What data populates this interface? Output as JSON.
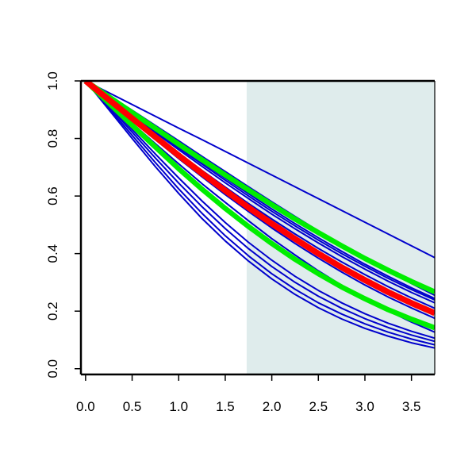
{
  "chart_data": {
    "type": "line",
    "title": "",
    "xlabel": "",
    "ylabel": "",
    "xlim": [
      -0.05,
      3.75
    ],
    "ylim": [
      -0.02,
      1.0
    ],
    "x_ticks": [
      {
        "value": 0.0,
        "label": "0.0"
      },
      {
        "value": 0.5,
        "label": "0.5"
      },
      {
        "value": 1.0,
        "label": "1.0"
      },
      {
        "value": 1.5,
        "label": "1.5"
      },
      {
        "value": 2.0,
        "label": "2.0"
      },
      {
        "value": 2.5,
        "label": "2.5"
      },
      {
        "value": 3.0,
        "label": "3.0"
      },
      {
        "value": 3.5,
        "label": "3.5"
      }
    ],
    "y_ticks": [
      {
        "value": 0.0,
        "label": "0.0"
      },
      {
        "value": 0.2,
        "label": "0.2"
      },
      {
        "value": 0.4,
        "label": "0.4"
      },
      {
        "value": 0.6,
        "label": "0.6"
      },
      {
        "value": 0.8,
        "label": "0.8"
      },
      {
        "value": 1.0,
        "label": "1.0"
      }
    ],
    "shaded_region": {
      "x_from": 1.73,
      "x_to": 3.75,
      "color": "#dfecec"
    },
    "grid": false,
    "legend": "none",
    "colors": {
      "blue": "#0000cc",
      "green": "#00ee00",
      "red": "#ff0000"
    },
    "series_x": [
      0.0,
      0.25,
      0.5,
      0.75,
      1.0,
      1.25,
      1.5,
      1.75,
      2.0,
      2.25,
      2.5,
      2.75,
      3.0,
      3.25,
      3.5,
      3.75
    ],
    "series": [
      {
        "color": "blue",
        "values": [
          1.0,
          0.925,
          0.853,
          0.782,
          0.712,
          0.643,
          0.578,
          0.514,
          0.452,
          0.395,
          0.34,
          0.29,
          0.244,
          0.201,
          0.162,
          0.127
        ]
      },
      {
        "color": "blue",
        "values": [
          1.0,
          0.93,
          0.862,
          0.796,
          0.73,
          0.667,
          0.605,
          0.546,
          0.489,
          0.435,
          0.384,
          0.336,
          0.291,
          0.249,
          0.211,
          0.175
        ]
      },
      {
        "color": "blue",
        "values": [
          1.0,
          0.935,
          0.871,
          0.807,
          0.745,
          0.684,
          0.625,
          0.567,
          0.511,
          0.458,
          0.408,
          0.36,
          0.315,
          0.273,
          0.234,
          0.198
        ]
      },
      {
        "color": "blue",
        "values": [
          1.0,
          0.935,
          0.873,
          0.811,
          0.749,
          0.689,
          0.631,
          0.574,
          0.52,
          0.468,
          0.418,
          0.371,
          0.327,
          0.285,
          0.246,
          0.21
        ]
      },
      {
        "color": "blue",
        "values": [
          1.0,
          0.94,
          0.88,
          0.82,
          0.761,
          0.703,
          0.646,
          0.591,
          0.537,
          0.486,
          0.437,
          0.39,
          0.346,
          0.304,
          0.265,
          0.229
        ]
      },
      {
        "color": "blue",
        "values": [
          1.0,
          0.941,
          0.883,
          0.825,
          0.767,
          0.711,
          0.655,
          0.6,
          0.547,
          0.496,
          0.447,
          0.4,
          0.356,
          0.314,
          0.275,
          0.239
        ]
      },
      {
        "color": "blue",
        "values": [
          1.0,
          0.943,
          0.886,
          0.829,
          0.773,
          0.717,
          0.662,
          0.608,
          0.555,
          0.504,
          0.455,
          0.408,
          0.363,
          0.321,
          0.281,
          0.244
        ]
      },
      {
        "color": "blue",
        "values": [
          1.0,
          0.95,
          0.898,
          0.845,
          0.792,
          0.738,
          0.685,
          0.632,
          0.58,
          0.529,
          0.479,
          0.431,
          0.384,
          0.339,
          0.296,
          0.255
        ]
      },
      {
        "color": "blue",
        "values": [
          1.0,
          0.959,
          0.918,
          0.877,
          0.836,
          0.796,
          0.755,
          0.714,
          0.673,
          0.632,
          0.591,
          0.55,
          0.509,
          0.468,
          0.427,
          0.386
        ]
      },
      {
        "color": "blue",
        "values": [
          1.0,
          0.912,
          0.822,
          0.732,
          0.645,
          0.563,
          0.487,
          0.417,
          0.355,
          0.3,
          0.252,
          0.21,
          0.174,
          0.143,
          0.117,
          0.095
        ]
      },
      {
        "color": "blue",
        "values": [
          1.0,
          0.917,
          0.831,
          0.746,
          0.663,
          0.583,
          0.508,
          0.439,
          0.377,
          0.321,
          0.272,
          0.229,
          0.191,
          0.158,
          0.13,
          0.106
        ]
      },
      {
        "color": "blue",
        "values": [
          1.0,
          0.906,
          0.811,
          0.716,
          0.625,
          0.54,
          0.462,
          0.392,
          0.33,
          0.276,
          0.229,
          0.19,
          0.156,
          0.127,
          0.103,
          0.083
        ]
      },
      {
        "color": "blue",
        "values": [
          1.0,
          0.9,
          0.8,
          0.702,
          0.609,
          0.522,
          0.444,
          0.374,
          0.312,
          0.258,
          0.212,
          0.173,
          0.14,
          0.113,
          0.09,
          0.072
        ]
      },
      {
        "color": "green",
        "values": [
          1.0,
          0.945,
          0.89,
          0.835,
          0.78,
          0.726,
          0.673,
          0.621,
          0.57,
          0.52,
          0.473,
          0.427,
          0.383,
          0.342,
          0.303,
          0.267
        ]
      },
      {
        "color": "green",
        "values": [
          1.0,
          0.923,
          0.846,
          0.77,
          0.695,
          0.624,
          0.557,
          0.494,
          0.435,
          0.38,
          0.33,
          0.284,
          0.243,
          0.205,
          0.172,
          0.142
        ]
      },
      {
        "color": "red",
        "values": [
          1.0,
          0.935,
          0.87,
          0.805,
          0.741,
          0.679,
          0.619,
          0.56,
          0.504,
          0.451,
          0.4,
          0.352,
          0.308,
          0.266,
          0.228,
          0.193
        ]
      }
    ]
  }
}
